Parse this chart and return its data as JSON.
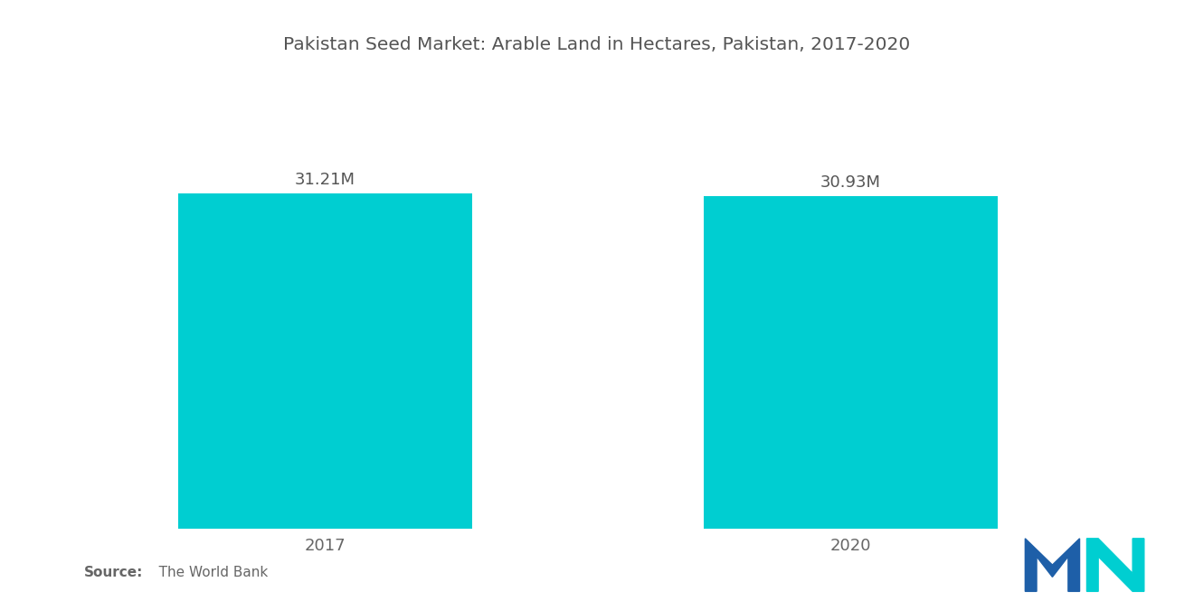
{
  "title": "Pakistan Seed Market: Arable Land in Hectares, Pakistan, 2017-2020",
  "categories": [
    "2017",
    "2020"
  ],
  "values": [
    31.21,
    30.93
  ],
  "labels": [
    "31.21M",
    "30.93M"
  ],
  "bar_color": "#00CED1",
  "background_color": "#ffffff",
  "title_fontsize": 14.5,
  "label_fontsize": 13,
  "tick_fontsize": 13,
  "source_bold": "Source:",
  "source_rest": "   The World Bank",
  "bar_width": 0.28,
  "x_positions": [
    0.23,
    0.73
  ],
  "xlim": [
    0.0,
    1.0
  ],
  "ylim": [
    0,
    38
  ],
  "title_color": "#555555",
  "tick_color": "#666666",
  "label_color": "#555555",
  "logo_blue": "#1E5FA8",
  "logo_teal": "#00CED1"
}
